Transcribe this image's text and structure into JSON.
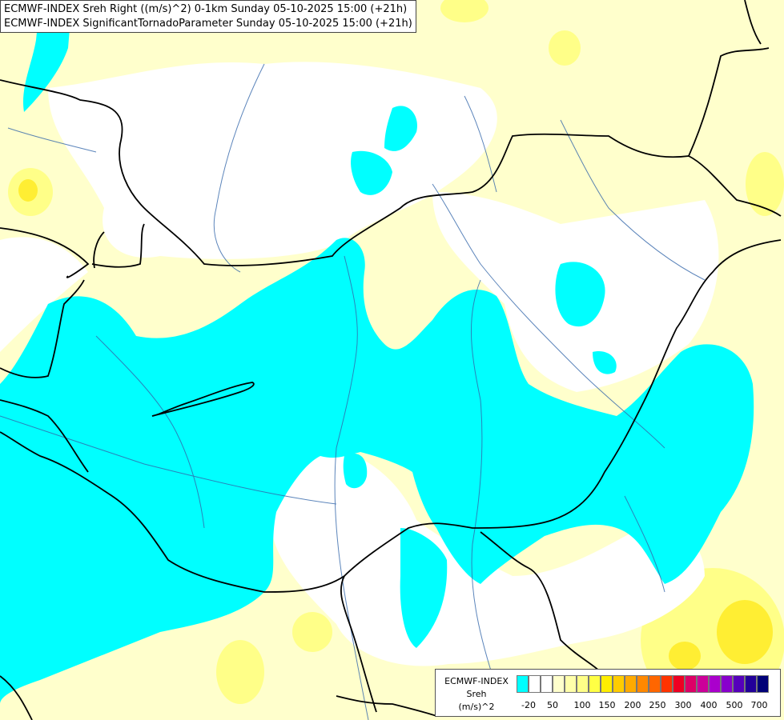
{
  "title_lines": [
    "ECMWF-INDEX Sreh Right ((m/s)^2) 0-1km Sunday 05-10-2025 15:00 (+21h)",
    "ECMWF-INDEX SignificantTornadoParameter Sunday 05-10-2025 15:00 (+21h)"
  ],
  "legend": {
    "source": "ECMWF-INDEX",
    "variable": "Sreh",
    "unit": "(m/s)^2",
    "tick_labels": [
      "-20",
      "50",
      "100",
      "150",
      "200",
      "250",
      "300",
      "400",
      "500",
      "700"
    ],
    "colors": [
      "#00ffff",
      "#ffffff",
      "#ffffff",
      "#ffffcc",
      "#ffffaa",
      "#ffff88",
      "#ffff44",
      "#ffee00",
      "#ffcc00",
      "#ffaa00",
      "#ff8800",
      "#ff6600",
      "#ff3300",
      "#ee0022",
      "#dd0066",
      "#cc0099",
      "#aa00cc",
      "#8800cc",
      "#5500bb",
      "#220099",
      "#000077"
    ]
  },
  "map_colors": {
    "cyan": "#00ffff",
    "white": "#ffffff",
    "pale_yellow": "#ffffcc",
    "light_yellow": "#ffff99",
    "yellow": "#ffff33",
    "borders": "#000000",
    "rivers": "#3366aa"
  }
}
